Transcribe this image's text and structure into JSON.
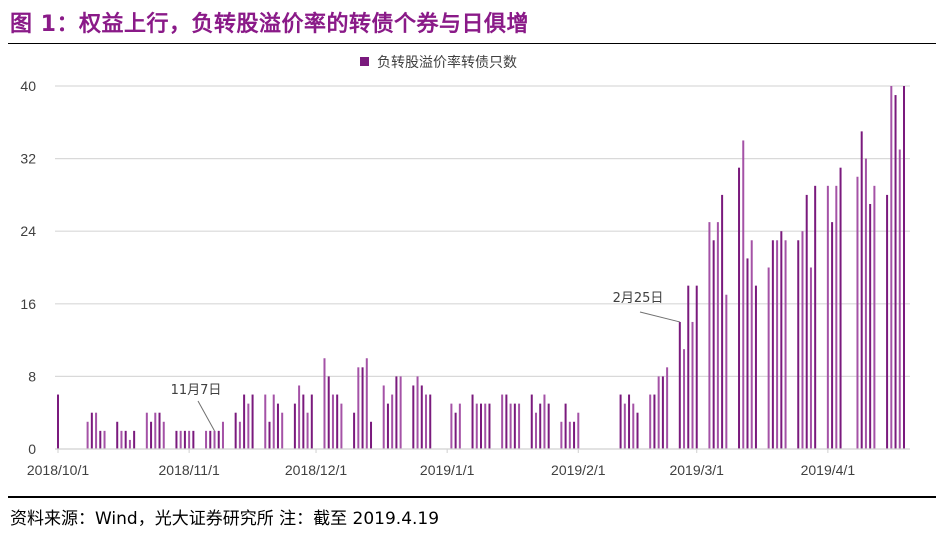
{
  "title": "图 1：权益上行，负转股溢价率的转债个券与日俱增",
  "source": "资料来源：Wind，光大证券研究所 注：截至 2019.4.19",
  "colors": {
    "title": "#8a1a88",
    "bar_dark": "#7a1a7d",
    "bar_light": "#a452a6",
    "grid": "#d9d9d9"
  },
  "chart_data": {
    "type": "bar",
    "title": "",
    "xlabel": "",
    "ylabel": "",
    "ylim": [
      0,
      40
    ],
    "yticks": [
      0,
      8,
      16,
      24,
      32,
      40
    ],
    "xticks": [
      "2018/10/1",
      "2018/11/1",
      "2018/12/1",
      "2019/1/1",
      "2019/2/1",
      "2019/3/1",
      "2019/4/1"
    ],
    "grid": true,
    "legend_position": "top-center",
    "series": [
      {
        "name": "负转股溢价率转债只数",
        "x": [
          "2018-10-01",
          "2018-10-08",
          "2018-10-09",
          "2018-10-10",
          "2018-10-11",
          "2018-10-12",
          "2018-10-15",
          "2018-10-16",
          "2018-10-17",
          "2018-10-18",
          "2018-10-19",
          "2018-10-22",
          "2018-10-23",
          "2018-10-24",
          "2018-10-25",
          "2018-10-26",
          "2018-10-29",
          "2018-10-30",
          "2018-10-31",
          "2018-11-01",
          "2018-11-02",
          "2018-11-05",
          "2018-11-06",
          "2018-11-07",
          "2018-11-08",
          "2018-11-09",
          "2018-11-12",
          "2018-11-13",
          "2018-11-14",
          "2018-11-15",
          "2018-11-16",
          "2018-11-19",
          "2018-11-20",
          "2018-11-21",
          "2018-11-22",
          "2018-11-23",
          "2018-11-26",
          "2018-11-27",
          "2018-11-28",
          "2018-11-29",
          "2018-11-30",
          "2018-12-03",
          "2018-12-04",
          "2018-12-05",
          "2018-12-06",
          "2018-12-07",
          "2018-12-10",
          "2018-12-11",
          "2018-12-12",
          "2018-12-13",
          "2018-12-14",
          "2018-12-17",
          "2018-12-18",
          "2018-12-19",
          "2018-12-20",
          "2018-12-21",
          "2018-12-24",
          "2018-12-25",
          "2018-12-26",
          "2018-12-27",
          "2018-12-28",
          "2019-01-02",
          "2019-01-03",
          "2019-01-04",
          "2019-01-07",
          "2019-01-08",
          "2019-01-09",
          "2019-01-10",
          "2019-01-11",
          "2019-01-14",
          "2019-01-15",
          "2019-01-16",
          "2019-01-17",
          "2019-01-18",
          "2019-01-21",
          "2019-01-22",
          "2019-01-23",
          "2019-01-24",
          "2019-01-25",
          "2019-01-28",
          "2019-01-29",
          "2019-01-30",
          "2019-01-31",
          "2019-02-01",
          "2019-02-11",
          "2019-02-12",
          "2019-02-13",
          "2019-02-14",
          "2019-02-15",
          "2019-02-18",
          "2019-02-19",
          "2019-02-20",
          "2019-02-21",
          "2019-02-22",
          "2019-02-25",
          "2019-02-26",
          "2019-02-27",
          "2019-02-28",
          "2019-03-01",
          "2019-03-04",
          "2019-03-05",
          "2019-03-06",
          "2019-03-07",
          "2019-03-08",
          "2019-03-11",
          "2019-03-12",
          "2019-03-13",
          "2019-03-14",
          "2019-03-15",
          "2019-03-18",
          "2019-03-19",
          "2019-03-20",
          "2019-03-21",
          "2019-03-22",
          "2019-03-25",
          "2019-03-26",
          "2019-03-27",
          "2019-03-28",
          "2019-03-29",
          "2019-04-01",
          "2019-04-02",
          "2019-04-03",
          "2019-04-04",
          "2019-04-08",
          "2019-04-09",
          "2019-04-10",
          "2019-04-11",
          "2019-04-12",
          "2019-04-15",
          "2019-04-16",
          "2019-04-17",
          "2019-04-18",
          "2019-04-19"
        ],
        "values": [
          6,
          3,
          4,
          4,
          2,
          2,
          3,
          2,
          2,
          1,
          2,
          4,
          3,
          4,
          4,
          3,
          2,
          2,
          2,
          2,
          2,
          2,
          2,
          2,
          2,
          3,
          4,
          3,
          6,
          5,
          6,
          6,
          3,
          6,
          5,
          4,
          5,
          7,
          6,
          4,
          6,
          10,
          8,
          6,
          6,
          5,
          4,
          9,
          9,
          10,
          3,
          7,
          5,
          6,
          8,
          8,
          7,
          8,
          7,
          6,
          6,
          5,
          4,
          5,
          6,
          5,
          5,
          5,
          5,
          6,
          6,
          5,
          5,
          5,
          6,
          4,
          5,
          6,
          5,
          3,
          5,
          3,
          3,
          4,
          6,
          5,
          6,
          5,
          4,
          6,
          6,
          8,
          8,
          9,
          14,
          11,
          18,
          14,
          18,
          25,
          23,
          25,
          28,
          17,
          31,
          34,
          21,
          23,
          18,
          20,
          23,
          23,
          24,
          23,
          23,
          24,
          28,
          20,
          29,
          29,
          25,
          29,
          31,
          30,
          35,
          32,
          27,
          29,
          28,
          40,
          39,
          33,
          40
        ]
      }
    ],
    "annotations": [
      {
        "text": "11月7日",
        "x": "2018-11-07"
      },
      {
        "text": "2月25日",
        "x": "2019-02-25"
      }
    ]
  }
}
